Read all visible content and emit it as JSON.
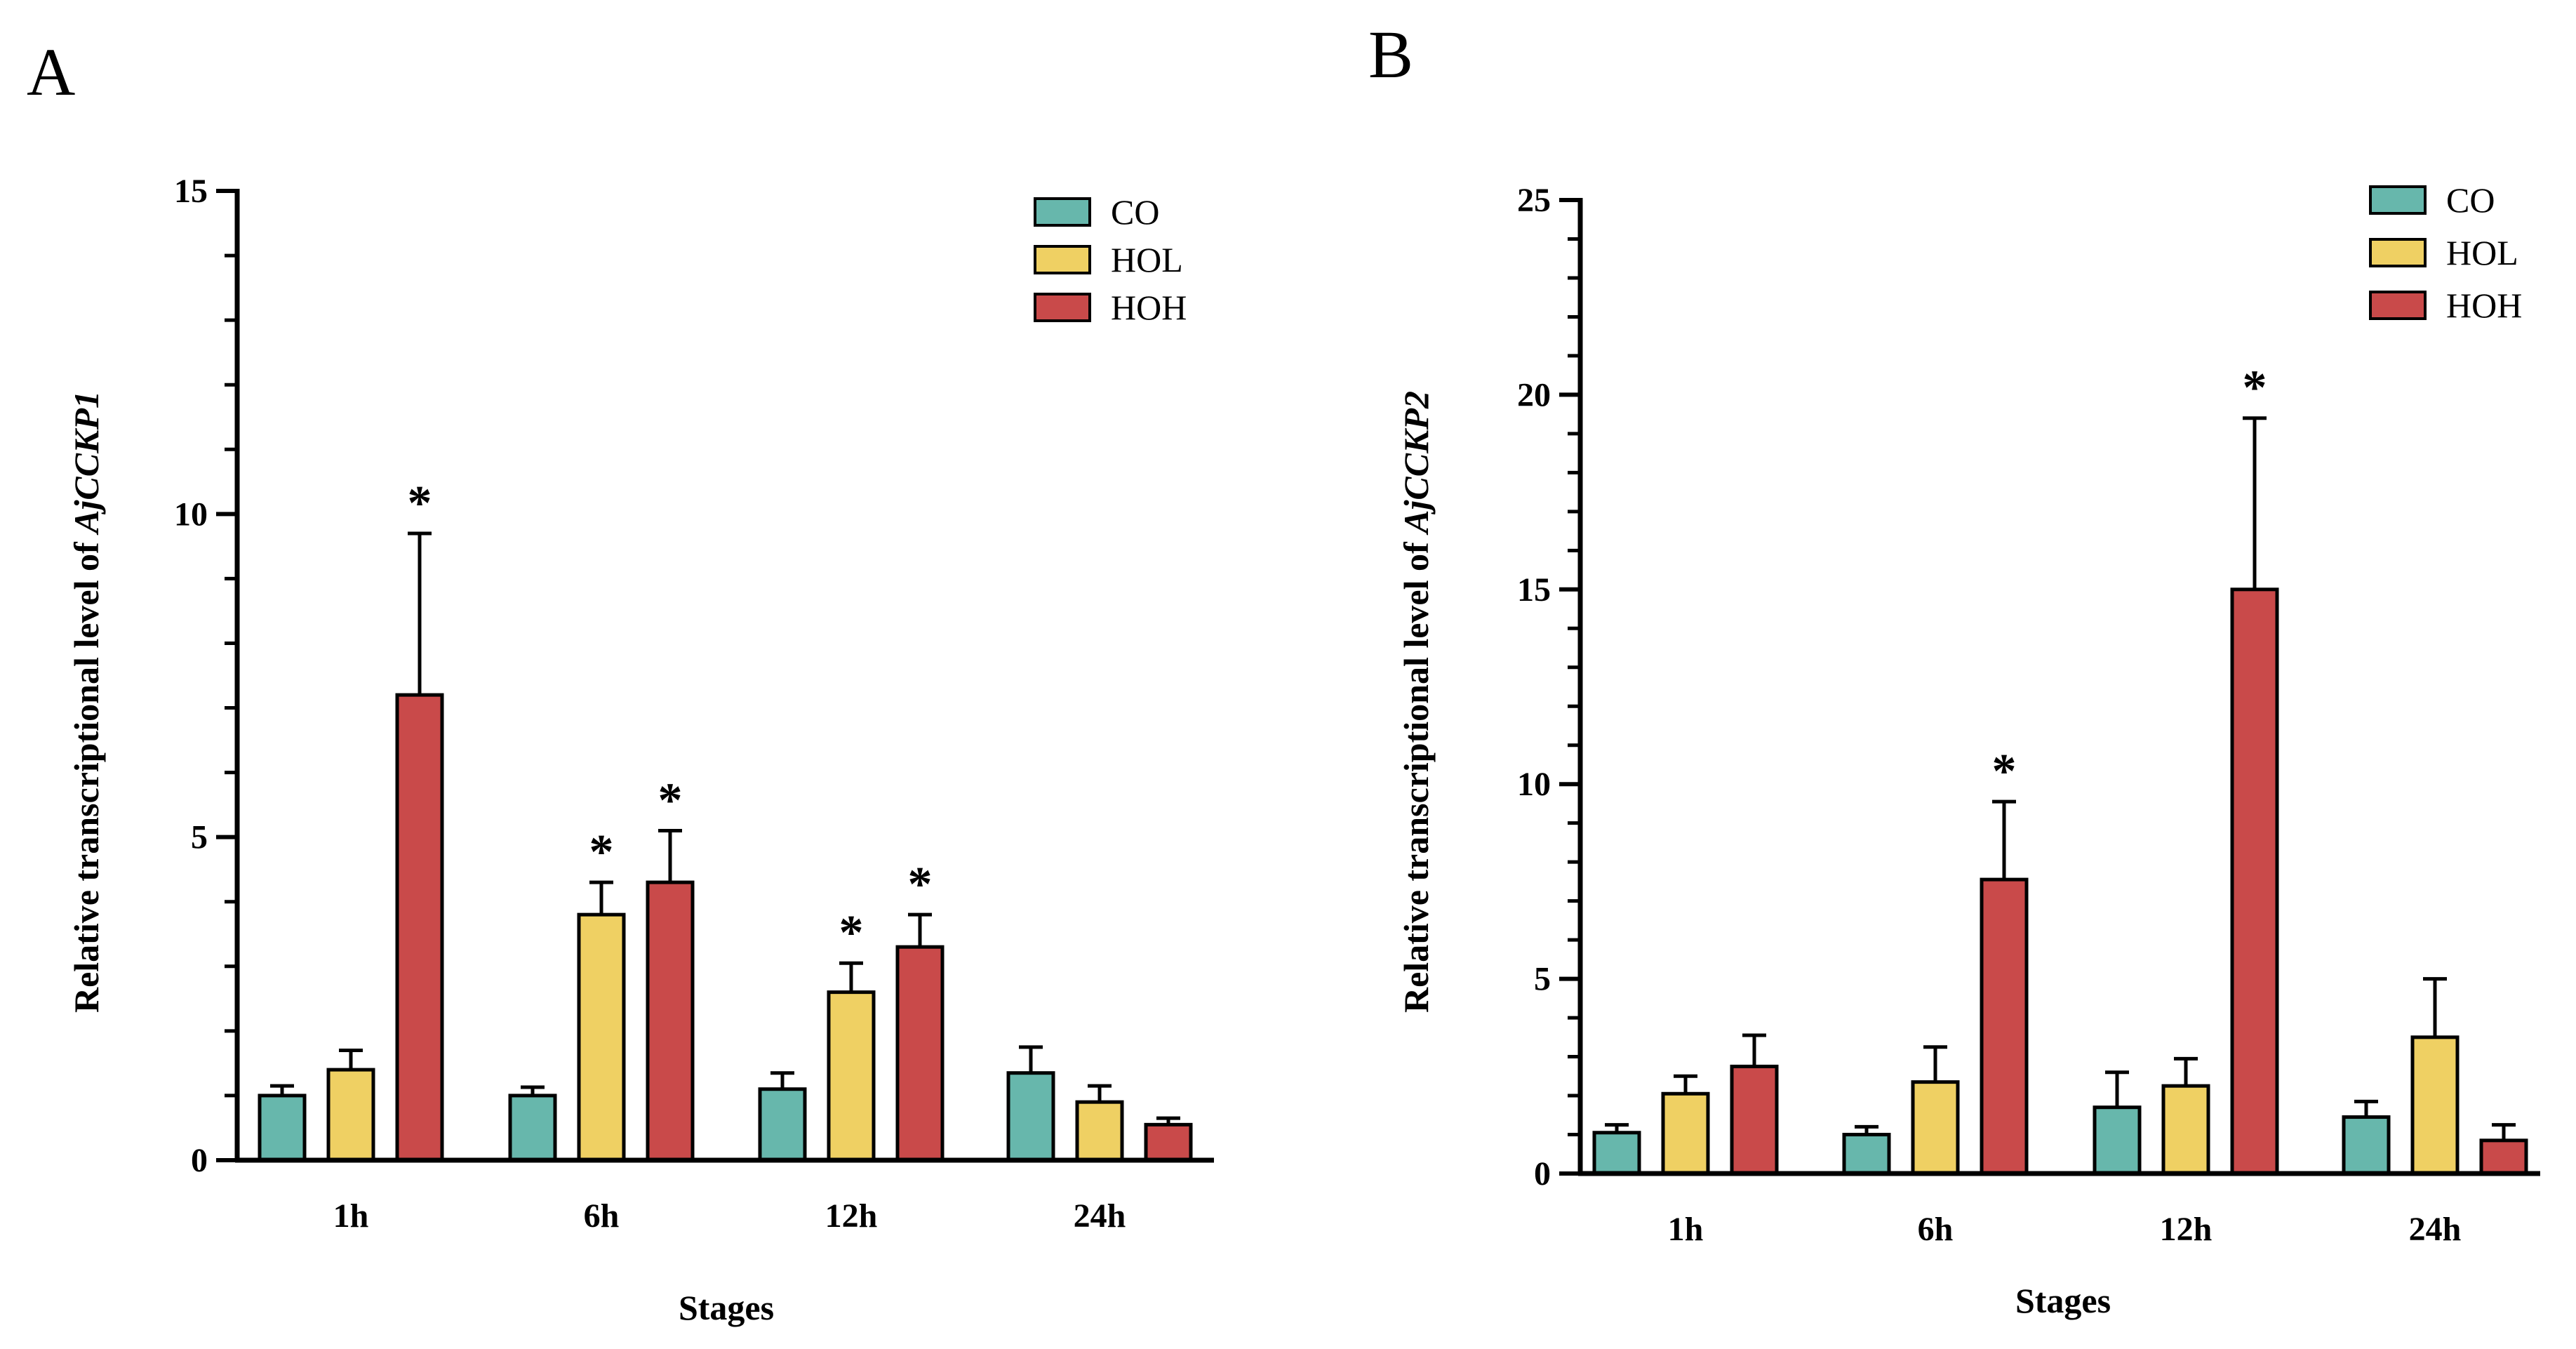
{
  "chart_data": [
    {
      "type": "bar",
      "panel_label": "A",
      "categories": [
        "1h",
        "6h",
        "12h",
        "24h"
      ],
      "series": [
        {
          "name": "CO",
          "color": "#67b7ac",
          "values": [
            1.0,
            1.0,
            1.1,
            1.35
          ],
          "errors": [
            0.15,
            0.13,
            0.25,
            0.4
          ]
        },
        {
          "name": "HOL",
          "color": "#efd063",
          "values": [
            1.4,
            3.8,
            2.6,
            0.9
          ],
          "errors": [
            0.3,
            0.5,
            0.45,
            0.25
          ]
        },
        {
          "name": "HOH",
          "color": "#c94a4a",
          "values": [
            7.2,
            4.3,
            3.3,
            0.55
          ],
          "errors": [
            2.5,
            0.8,
            0.5,
            0.1
          ]
        }
      ],
      "significance": [
        {
          "series": "HOH",
          "category": "1h",
          "label": "*"
        },
        {
          "series": "HOL",
          "category": "6h",
          "label": "*"
        },
        {
          "series": "HOH",
          "category": "6h",
          "label": "*"
        },
        {
          "series": "HOL",
          "category": "12h",
          "label": "*"
        },
        {
          "series": "HOH",
          "category": "12h",
          "label": "*"
        }
      ],
      "title": "",
      "xlabel": "Stages",
      "ylabel_prefix": "Relative transcriptional level of ",
      "ylabel_gene": "AjCCKP1",
      "ylim": [
        0,
        15
      ],
      "yticks": [
        0,
        5,
        10,
        15
      ],
      "yticks_text": [
        "0",
        "5",
        "10",
        "15"
      ],
      "minor_step": 1,
      "legend_position": "top-right"
    },
    {
      "type": "bar",
      "panel_label": "B",
      "categories": [
        "1h",
        "6h",
        "12h",
        "24h"
      ],
      "series": [
        {
          "name": "CO",
          "color": "#67b7ac",
          "values": [
            1.05,
            1.0,
            1.7,
            1.45
          ],
          "errors": [
            0.2,
            0.2,
            0.9,
            0.4
          ]
        },
        {
          "name": "HOL",
          "color": "#efd063",
          "values": [
            2.05,
            2.35,
            2.25,
            3.5
          ],
          "errors": [
            0.45,
            0.9,
            0.7,
            1.5
          ]
        },
        {
          "name": "HOH",
          "color": "#c94a4a",
          "values": [
            2.75,
            7.55,
            15.0,
            0.85
          ],
          "errors": [
            0.8,
            2.0,
            4.4,
            0.4
          ]
        }
      ],
      "significance": [
        {
          "series": "HOH",
          "category": "6h",
          "label": "*"
        },
        {
          "series": "HOH",
          "category": "12h",
          "label": "*"
        }
      ],
      "title": "",
      "xlabel": "Stages",
      "ylabel_prefix": "Relative transcriptional level of ",
      "ylabel_gene": "AjCCKP2",
      "ylim": [
        0,
        25
      ],
      "yticks": [
        0,
        5,
        10,
        15,
        20,
        25
      ],
      "yticks_text": [
        "0",
        "5",
        "10",
        "15",
        "20",
        "25"
      ],
      "minor_step": 1,
      "legend_position": "top-right"
    }
  ]
}
